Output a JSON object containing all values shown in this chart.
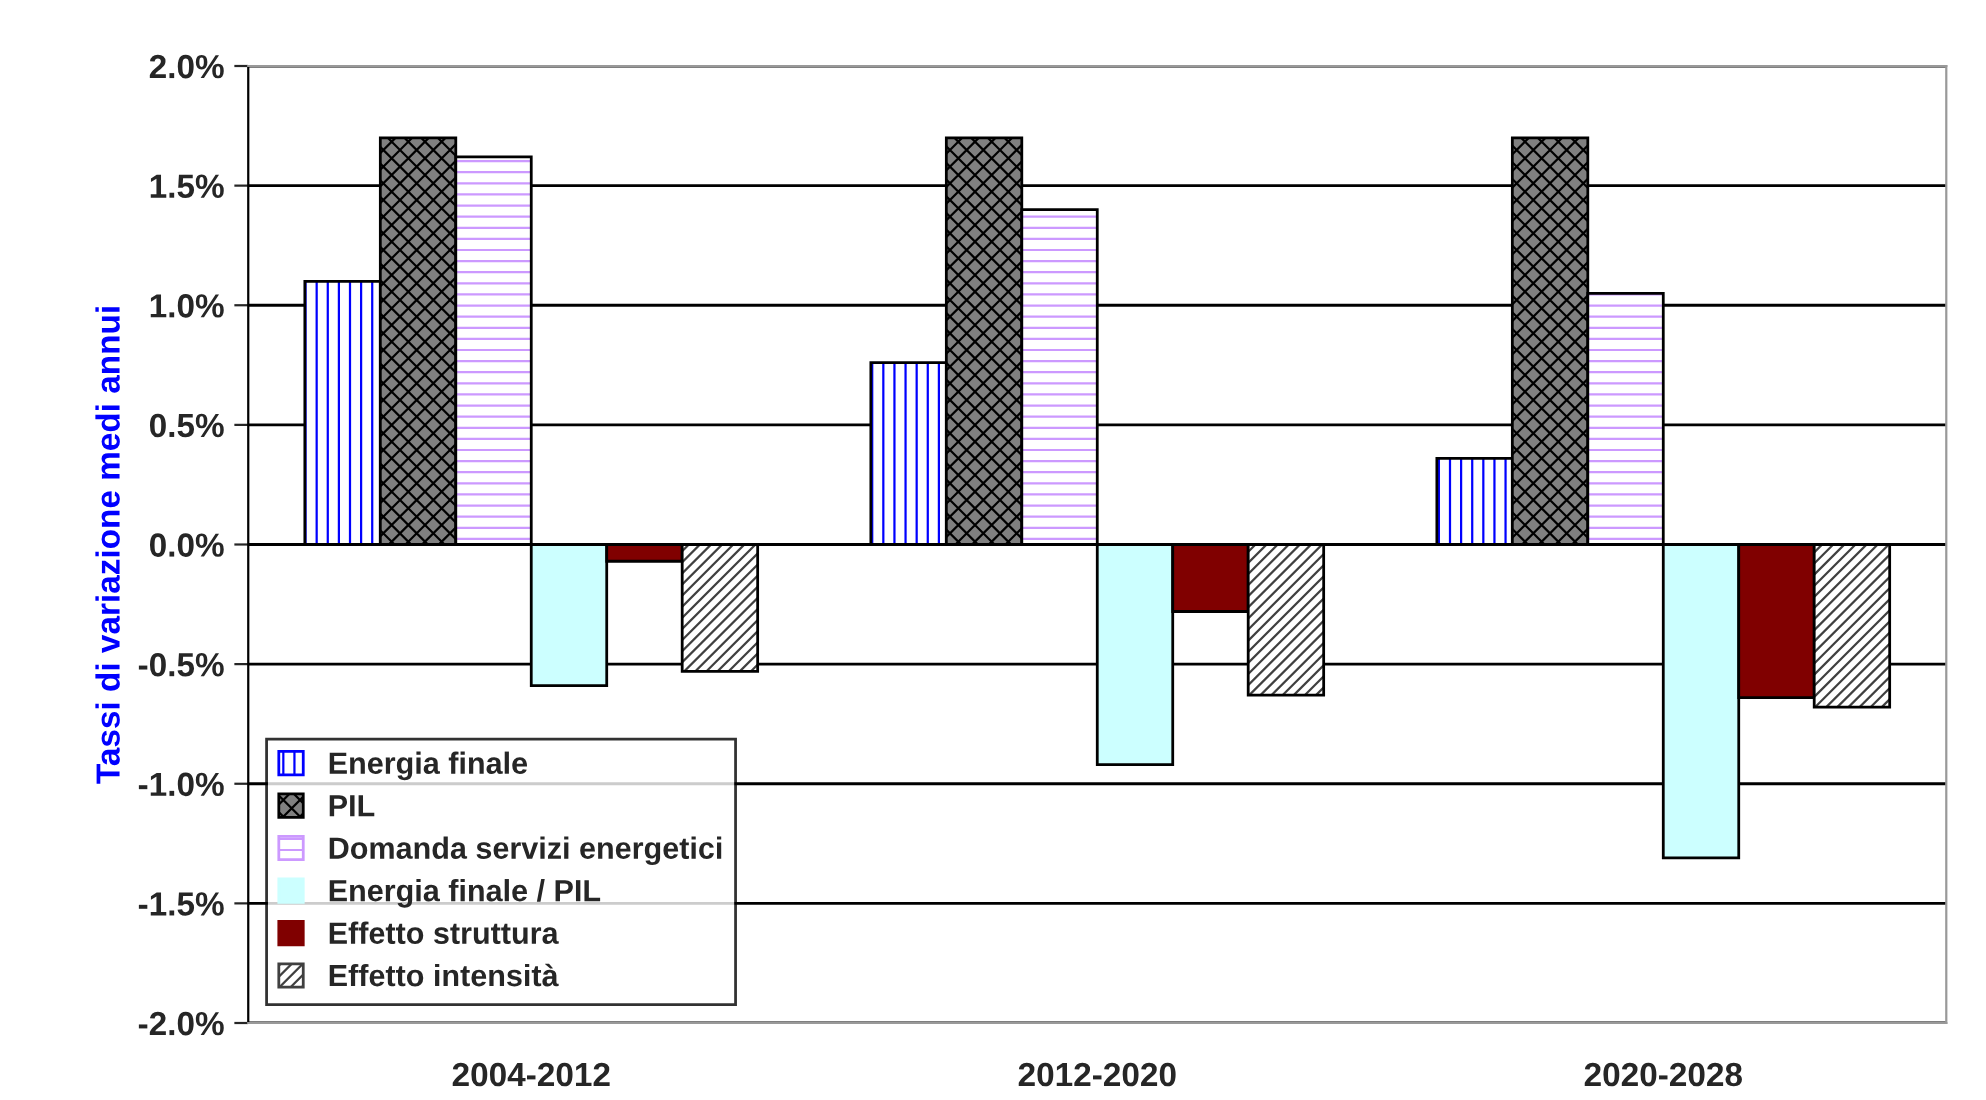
{
  "chart_data": {
    "type": "bar",
    "ylabel": "Tassi di variazione medi annui",
    "categories": [
      "2004-2012",
      "2012-2020",
      "2020-2028"
    ],
    "series": [
      {
        "name": "Energia finale",
        "color": "#0000ff",
        "values": [
          1.1,
          0.76,
          0.36
        ]
      },
      {
        "name": "PIL",
        "color": "#808080",
        "values": [
          1.7,
          1.7,
          1.7
        ]
      },
      {
        "name": "Domanda servizi energetici",
        "color": "#cc99ff",
        "values": [
          1.62,
          1.4,
          1.05
        ]
      },
      {
        "name": "Energia finale / PIL",
        "color": "#ccffff",
        "values": [
          -0.59,
          -0.92,
          -1.31
        ]
      },
      {
        "name": "Effetto struttura",
        "color": "#800000",
        "values": [
          -0.07,
          -0.28,
          -0.64
        ]
      },
      {
        "name": "Effetto intensità",
        "color": "#404040",
        "values": [
          -0.53,
          -0.63,
          -0.68
        ]
      }
    ],
    "ylim": [
      -2.0,
      2.0
    ],
    "yticks": [
      {
        "value": -2.0,
        "label": "-2.0%"
      },
      {
        "value": -1.5,
        "label": "-1.5%"
      },
      {
        "value": -1.0,
        "label": "-1.0%"
      },
      {
        "value": -0.5,
        "label": "-0.5%"
      },
      {
        "value": 0.0,
        "label": "0.0%"
      },
      {
        "value": 0.5,
        "label": "0.5%"
      },
      {
        "value": 1.0,
        "label": "1.0%"
      },
      {
        "value": 1.5,
        "label": "1.5%"
      },
      {
        "value": 2.0,
        "label": "2.0%"
      }
    ],
    "grid": "y",
    "legend": "bottom left"
  }
}
